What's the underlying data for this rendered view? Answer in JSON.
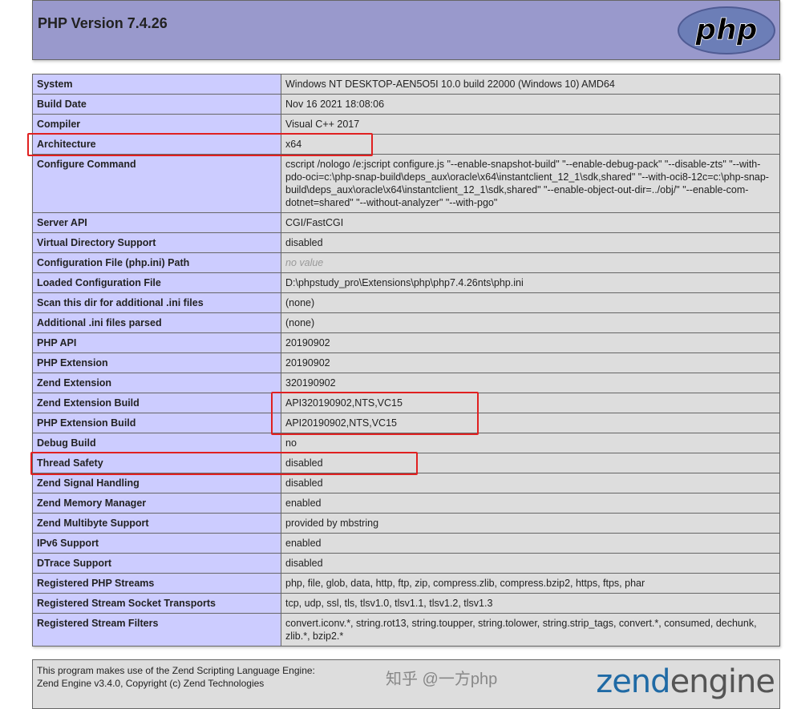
{
  "header": {
    "title": "PHP Version 7.4.26",
    "logo_text": "php"
  },
  "rows": [
    {
      "label": "System",
      "value": "Windows NT DESKTOP-AEN5O5I 10.0 build 22000 (Windows 10) AMD64"
    },
    {
      "label": "Build Date",
      "value": "Nov 16 2021 18:08:06"
    },
    {
      "label": "Compiler",
      "value": "Visual C++ 2017"
    },
    {
      "label": "Architecture",
      "value": "x64"
    },
    {
      "label": "Configure Command",
      "value": "cscript /nologo /e:jscript configure.js \"--enable-snapshot-build\" \"--enable-debug-pack\" \"--disable-zts\" \"--with-pdo-oci=c:\\php-snap-build\\deps_aux\\oracle\\x64\\instantclient_12_1\\sdk,shared\" \"--with-oci8-12c=c:\\php-snap-build\\deps_aux\\oracle\\x64\\instantclient_12_1\\sdk,shared\" \"--enable-object-out-dir=../obj/\" \"--enable-com-dotnet=shared\" \"--without-analyzer\" \"--with-pgo\""
    },
    {
      "label": "Server API",
      "value": "CGI/FastCGI"
    },
    {
      "label": "Virtual Directory Support",
      "value": "disabled"
    },
    {
      "label": "Configuration File (php.ini) Path",
      "value": "no value",
      "novalue": true
    },
    {
      "label": "Loaded Configuration File",
      "value": "D:\\phpstudy_pro\\Extensions\\php\\php7.4.26nts\\php.ini"
    },
    {
      "label": "Scan this dir for additional .ini files",
      "value": "(none)"
    },
    {
      "label": "Additional .ini files parsed",
      "value": "(none)"
    },
    {
      "label": "PHP API",
      "value": "20190902"
    },
    {
      "label": "PHP Extension",
      "value": "20190902"
    },
    {
      "label": "Zend Extension",
      "value": "320190902"
    },
    {
      "label": "Zend Extension Build",
      "value": "API320190902,NTS,VC15"
    },
    {
      "label": "PHP Extension Build",
      "value": "API20190902,NTS,VC15"
    },
    {
      "label": "Debug Build",
      "value": "no"
    },
    {
      "label": "Thread Safety",
      "value": "disabled"
    },
    {
      "label": "Zend Signal Handling",
      "value": "disabled"
    },
    {
      "label": "Zend Memory Manager",
      "value": "enabled"
    },
    {
      "label": "Zend Multibyte Support",
      "value": "provided by mbstring"
    },
    {
      "label": "IPv6 Support",
      "value": "enabled"
    },
    {
      "label": "DTrace Support",
      "value": "disabled"
    },
    {
      "label": "Registered PHP Streams",
      "value": "php, file, glob, data, http, ftp, zip, compress.zlib, compress.bzip2, https, ftps, phar"
    },
    {
      "label": "Registered Stream Socket Transports",
      "value": "tcp, udp, ssl, tls, tlsv1.0, tlsv1.1, tlsv1.2, tlsv1.3"
    },
    {
      "label": "Registered Stream Filters",
      "value": "convert.iconv.*, string.rot13, string.toupper, string.tolower, string.strip_tags, convert.*, consumed, dechunk, zlib.*, bzip2.*"
    }
  ],
  "footer": {
    "line1": "This program makes use of the Zend Scripting Language Engine:",
    "line2": "Zend Engine v3.4.0, Copyright (c) Zend Technologies",
    "logo_text": "zend engine"
  },
  "watermark": "知乎 @一方php",
  "colors": {
    "header": "#9999cc",
    "label_bg": "#ccccff",
    "value_bg": "#dddddd",
    "highlight": "#e02020"
  }
}
